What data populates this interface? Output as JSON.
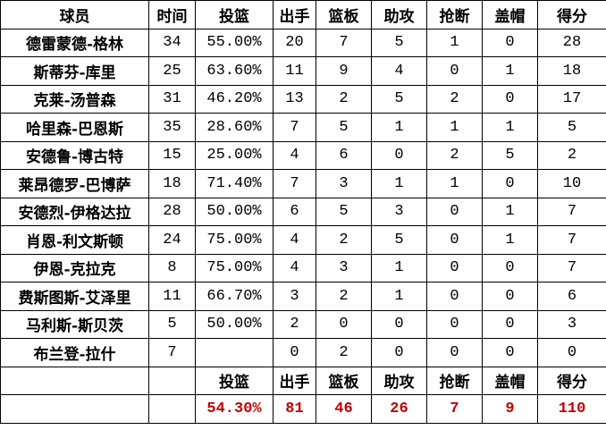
{
  "headers": [
    "球员",
    "时间",
    "投篮",
    "出手",
    "篮板",
    "助攻",
    "抢断",
    "盖帽",
    "得分"
  ],
  "rows": [
    [
      "德雷蒙德-格林",
      "34",
      "55.00%",
      "20",
      "7",
      "5",
      "1",
      "0",
      "28"
    ],
    [
      "斯蒂芬-库里",
      "25",
      "63.60%",
      "11",
      "9",
      "4",
      "0",
      "1",
      "18"
    ],
    [
      "克莱-汤普森",
      "31",
      "46.20%",
      "13",
      "2",
      "5",
      "2",
      "0",
      "17"
    ],
    [
      "哈里森-巴恩斯",
      "35",
      "28.60%",
      "7",
      "5",
      "1",
      "1",
      "1",
      "5"
    ],
    [
      "安德鲁-博古特",
      "15",
      "25.00%",
      "4",
      "6",
      "0",
      "2",
      "5",
      "2"
    ],
    [
      "莱昂德罗-巴博萨",
      "18",
      "71.40%",
      "7",
      "3",
      "1",
      "1",
      "0",
      "10"
    ],
    [
      "安德烈-伊格达拉",
      "28",
      "50.00%",
      "6",
      "5",
      "3",
      "0",
      "1",
      "7"
    ],
    [
      "肖恩-利文斯顿",
      "24",
      "75.00%",
      "4",
      "2",
      "5",
      "0",
      "1",
      "7"
    ],
    [
      "伊恩-克拉克",
      "8",
      "75.00%",
      "4",
      "3",
      "1",
      "0",
      "0",
      "7"
    ],
    [
      "费斯图斯-艾泽里",
      "11",
      "66.70%",
      "3",
      "2",
      "1",
      "0",
      "0",
      "6"
    ],
    [
      "马利斯-斯贝茨",
      "5",
      "50.00%",
      "2",
      "0",
      "0",
      "0",
      "0",
      "3"
    ],
    [
      "布兰登-拉什",
      "7",
      "",
      "0",
      "2",
      "0",
      "0",
      "0",
      "0"
    ]
  ],
  "totals_headers": [
    "投篮",
    "出手",
    "篮板",
    "助攻",
    "抢断",
    "盖帽",
    "得分"
  ],
  "totals": [
    "54.30%",
    "81",
    "46",
    "26",
    "7",
    "9",
    "110"
  ],
  "colors": {
    "totals_text": "#c00000",
    "border": "#000000"
  }
}
